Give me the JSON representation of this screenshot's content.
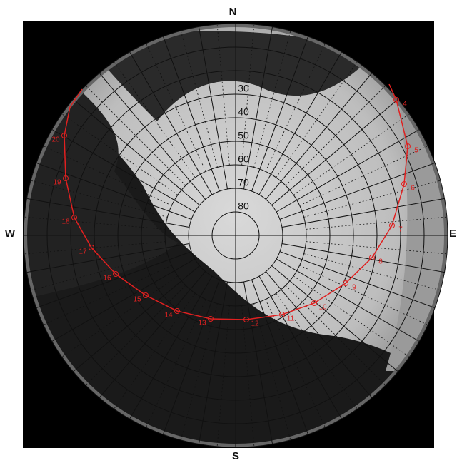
{
  "compass": {
    "north": "N",
    "east": "E",
    "south": "S",
    "west": "W"
  },
  "altitude_labels": [
    "30",
    "40",
    "50",
    "60",
    "70",
    "80"
  ],
  "hour_labels": [
    "4",
    "5",
    "6",
    "7",
    "8",
    "9",
    "10",
    "11",
    "12",
    "13",
    "14",
    "15",
    "16",
    "17",
    "18",
    "19",
    "20"
  ]
}
